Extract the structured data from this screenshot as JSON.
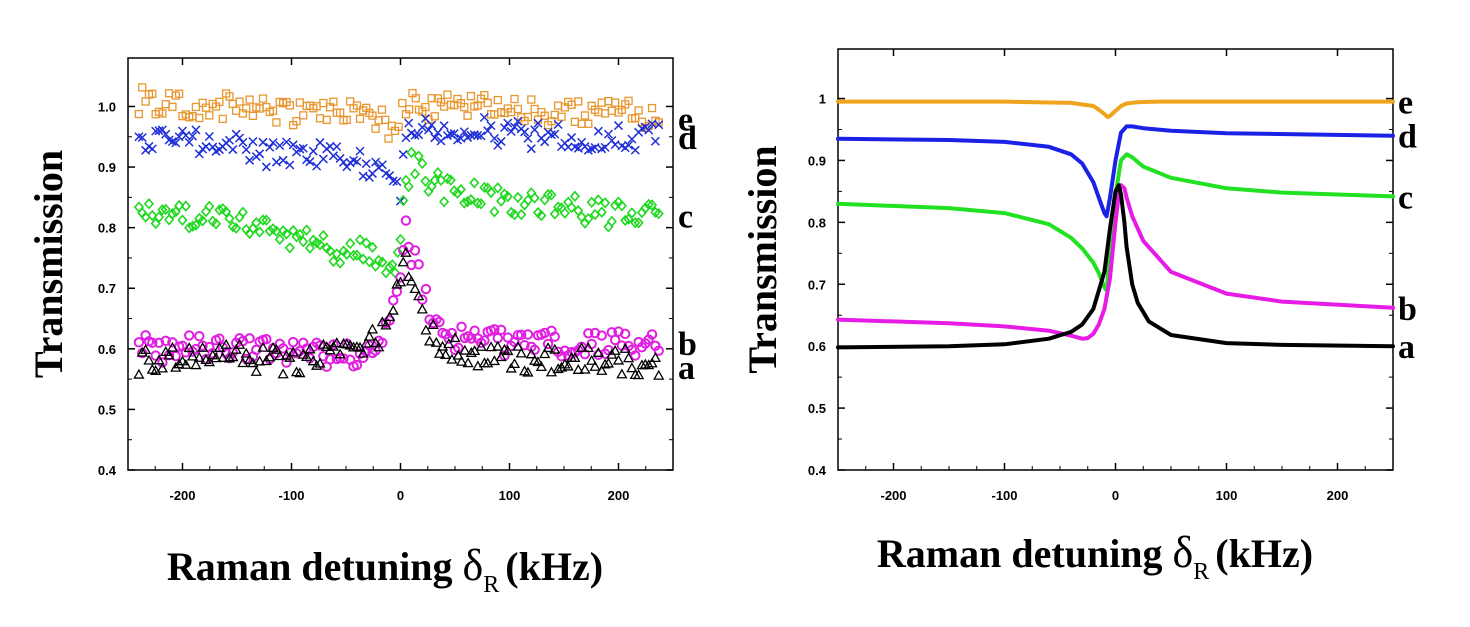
{
  "chart_data": [
    {
      "type": "scatter",
      "panel": "left",
      "title": "",
      "xlabel": "Raman detuning",
      "xlabel_symbol": "δ",
      "xlabel_subscript": "R",
      "xlabel_unit": "(kHz)",
      "ylabel": "Transmission",
      "xlim": [
        -250,
        250
      ],
      "ylim": [
        0.4,
        1.08
      ],
      "xticks": [
        -200,
        -100,
        0,
        100,
        200
      ],
      "xtick_labels": [
        "-200",
        "-100",
        "0",
        "100",
        "200"
      ],
      "yticks": [
        0.4,
        0.5,
        0.6,
        0.7,
        0.8,
        0.9,
        1.0
      ],
      "ytick_labels": [
        "0.4",
        "0.5",
        "0.6",
        "0.7",
        "0.8",
        "0.9",
        "1.0"
      ],
      "grid": false,
      "series": [
        {
          "name": "e",
          "label": "e",
          "marker": "square",
          "color": "#e8962e",
          "x": [
            -240,
            -200,
            -160,
            -120,
            -80,
            -40,
            -20,
            -5,
            5,
            20,
            40,
            80,
            120,
            160,
            200,
            240
          ],
          "y": [
            1.01,
            1.0,
            1.0,
            0.99,
            0.99,
            0.99,
            0.98,
            0.96,
            1.0,
            1.0,
            1.0,
            1.0,
            0.99,
            0.99,
            0.99,
            0.98
          ]
        },
        {
          "name": "d",
          "label": "d",
          "marker": "x",
          "color": "#1f2fd6",
          "x": [
            -240,
            -200,
            -160,
            -120,
            -80,
            -40,
            -20,
            -10,
            0,
            5,
            10,
            20,
            40,
            80,
            120,
            160,
            200,
            240
          ],
          "y": [
            0.94,
            0.94,
            0.94,
            0.92,
            0.92,
            0.91,
            0.89,
            0.87,
            0.85,
            0.95,
            0.97,
            0.96,
            0.96,
            0.96,
            0.95,
            0.95,
            0.95,
            0.95
          ]
        },
        {
          "name": "c",
          "label": "c",
          "marker": "diamond",
          "color": "#1fd81f",
          "x": [
            -240,
            -200,
            -160,
            -120,
            -80,
            -40,
            -20,
            -10,
            -5,
            0,
            5,
            10,
            20,
            40,
            80,
            120,
            160,
            200,
            240
          ],
          "y": [
            0.82,
            0.82,
            0.81,
            0.8,
            0.77,
            0.76,
            0.75,
            0.73,
            0.71,
            0.79,
            0.87,
            0.91,
            0.89,
            0.86,
            0.85,
            0.84,
            0.83,
            0.82,
            0.82
          ]
        },
        {
          "name": "b",
          "label": "b",
          "marker": "hexagon",
          "color": "#e020e0",
          "x": [
            -240,
            -200,
            -160,
            -120,
            -80,
            -40,
            -20,
            -10,
            0,
            5,
            10,
            20,
            30,
            50,
            80,
            120,
            160,
            200,
            240
          ],
          "y": [
            0.6,
            0.6,
            0.6,
            0.6,
            0.59,
            0.59,
            0.6,
            0.65,
            0.74,
            0.82,
            0.76,
            0.7,
            0.65,
            0.62,
            0.61,
            0.61,
            0.61,
            0.61,
            0.61
          ]
        },
        {
          "name": "a",
          "label": "a",
          "marker": "triangle",
          "color": "#000000",
          "x": [
            -240,
            -200,
            -160,
            -120,
            -80,
            -40,
            -20,
            -10,
            0,
            5,
            10,
            20,
            30,
            50,
            80,
            120,
            160,
            200,
            240
          ],
          "y": [
            0.58,
            0.58,
            0.59,
            0.58,
            0.58,
            0.6,
            0.62,
            0.65,
            0.72,
            0.76,
            0.7,
            0.65,
            0.62,
            0.6,
            0.59,
            0.58,
            0.58,
            0.58,
            0.57
          ]
        }
      ]
    },
    {
      "type": "line",
      "panel": "right",
      "title": "",
      "xlabel": "Raman detuning",
      "xlabel_symbol": "δ",
      "xlabel_subscript": "R",
      "xlabel_unit": "(kHz)",
      "ylabel": "Transmission",
      "xlim": [
        -250,
        250
      ],
      "ylim": [
        0.4,
        1.08
      ],
      "xticks": [
        -200,
        -100,
        0,
        100,
        200
      ],
      "xtick_labels": [
        "-200",
        "-100",
        "0",
        "100",
        "200"
      ],
      "yticks": [
        0.4,
        0.5,
        0.6,
        0.7,
        0.8,
        0.9,
        1.0
      ],
      "ytick_labels": [
        "0.4",
        "0.5",
        "0.6",
        "0.7",
        "0.8",
        "0.9",
        "1"
      ],
      "grid": false,
      "series": [
        {
          "name": "e",
          "label": "e",
          "color": "#f0a31e",
          "x": [
            -250,
            -100,
            -40,
            -20,
            -15,
            -10,
            -7,
            -5,
            0,
            5,
            10,
            20,
            40,
            100,
            250
          ],
          "y": [
            0.995,
            0.995,
            0.993,
            0.988,
            0.982,
            0.975,
            0.97,
            0.972,
            0.98,
            0.988,
            0.992,
            0.994,
            0.995,
            0.995,
            0.995
          ]
        },
        {
          "name": "d",
          "label": "d",
          "color": "#1a22e6",
          "x": [
            -250,
            -150,
            -100,
            -60,
            -40,
            -30,
            -20,
            -15,
            -10,
            -8,
            -5,
            0,
            5,
            10,
            15,
            25,
            50,
            100,
            250
          ],
          "y": [
            0.935,
            0.933,
            0.93,
            0.922,
            0.91,
            0.895,
            0.865,
            0.84,
            0.815,
            0.81,
            0.84,
            0.9,
            0.945,
            0.955,
            0.955,
            0.952,
            0.948,
            0.944,
            0.94
          ]
        },
        {
          "name": "c",
          "label": "c",
          "color": "#22e022",
          "x": [
            -250,
            -150,
            -100,
            -60,
            -40,
            -30,
            -20,
            -15,
            -10,
            -8,
            -5,
            0,
            5,
            10,
            15,
            25,
            50,
            100,
            150,
            250
          ],
          "y": [
            0.83,
            0.823,
            0.815,
            0.797,
            0.775,
            0.758,
            0.735,
            0.718,
            0.695,
            0.69,
            0.75,
            0.845,
            0.9,
            0.91,
            0.905,
            0.89,
            0.872,
            0.855,
            0.848,
            0.842
          ]
        },
        {
          "name": "b",
          "label": "b",
          "color": "#e61be6",
          "x": [
            -250,
            -150,
            -100,
            -60,
            -40,
            -30,
            -25,
            -20,
            -15,
            -10,
            -5,
            0,
            3,
            5,
            8,
            10,
            15,
            25,
            50,
            100,
            150,
            250
          ],
          "y": [
            0.643,
            0.637,
            0.632,
            0.625,
            0.617,
            0.612,
            0.613,
            0.62,
            0.635,
            0.66,
            0.71,
            0.8,
            0.845,
            0.86,
            0.855,
            0.84,
            0.81,
            0.77,
            0.72,
            0.685,
            0.672,
            0.662
          ]
        },
        {
          "name": "a",
          "label": "a",
          "color": "#000000",
          "x": [
            -250,
            -150,
            -100,
            -60,
            -40,
            -30,
            -20,
            -10,
            -5,
            0,
            3,
            5,
            8,
            10,
            15,
            20,
            30,
            50,
            100,
            150,
            250
          ],
          "y": [
            0.598,
            0.6,
            0.603,
            0.612,
            0.623,
            0.635,
            0.66,
            0.72,
            0.79,
            0.85,
            0.86,
            0.845,
            0.8,
            0.76,
            0.7,
            0.67,
            0.64,
            0.618,
            0.605,
            0.602,
            0.6
          ]
        }
      ]
    }
  ]
}
